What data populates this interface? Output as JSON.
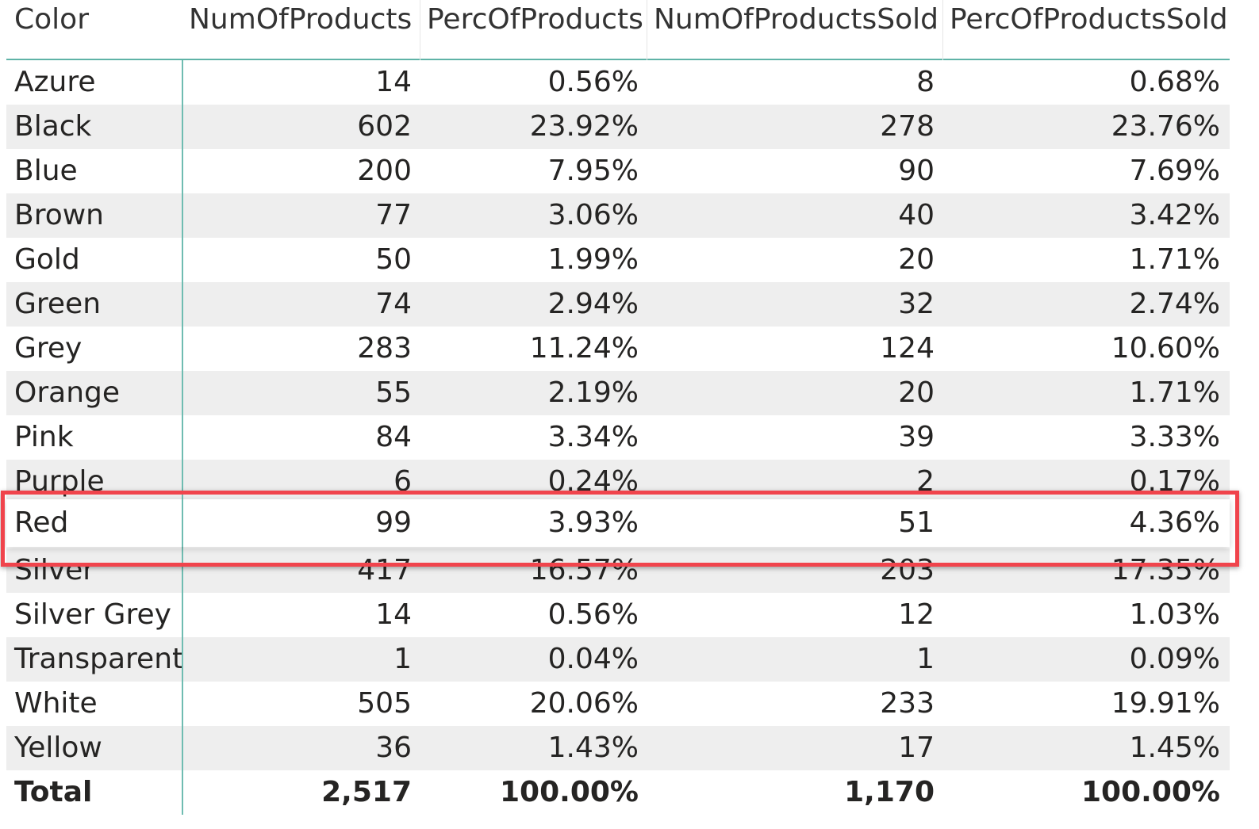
{
  "table": {
    "columns": [
      "Color",
      "NumOfProducts",
      "PercOfProducts",
      "NumOfProductsSold",
      "PercOfProductsSold"
    ],
    "rows": [
      {
        "color": "Azure",
        "num": "14",
        "perc": "0.56%",
        "sold": "8",
        "perc_sold": "0.68%"
      },
      {
        "color": "Black",
        "num": "602",
        "perc": "23.92%",
        "sold": "278",
        "perc_sold": "23.76%"
      },
      {
        "color": "Blue",
        "num": "200",
        "perc": "7.95%",
        "sold": "90",
        "perc_sold": "7.69%"
      },
      {
        "color": "Brown",
        "num": "77",
        "perc": "3.06%",
        "sold": "40",
        "perc_sold": "3.42%"
      },
      {
        "color": "Gold",
        "num": "50",
        "perc": "1.99%",
        "sold": "20",
        "perc_sold": "1.71%"
      },
      {
        "color": "Green",
        "num": "74",
        "perc": "2.94%",
        "sold": "32",
        "perc_sold": "2.74%"
      },
      {
        "color": "Grey",
        "num": "283",
        "perc": "11.24%",
        "sold": "124",
        "perc_sold": "10.60%"
      },
      {
        "color": "Orange",
        "num": "55",
        "perc": "2.19%",
        "sold": "20",
        "perc_sold": "1.71%"
      },
      {
        "color": "Pink",
        "num": "84",
        "perc": "3.34%",
        "sold": "39",
        "perc_sold": "3.33%"
      },
      {
        "color": "Purple",
        "num": "6",
        "perc": "0.24%",
        "sold": "2",
        "perc_sold": "0.17%"
      },
      {
        "color": "Red",
        "num": "99",
        "perc": "3.93%",
        "sold": "51",
        "perc_sold": "4.36%"
      },
      {
        "color": "Silver",
        "num": "417",
        "perc": "16.57%",
        "sold": "203",
        "perc_sold": "17.35%"
      },
      {
        "color": "Silver Grey",
        "num": "14",
        "perc": "0.56%",
        "sold": "12",
        "perc_sold": "1.03%"
      },
      {
        "color": "Transparent",
        "num": "1",
        "perc": "0.04%",
        "sold": "1",
        "perc_sold": "0.09%"
      },
      {
        "color": "White",
        "num": "505",
        "perc": "20.06%",
        "sold": "233",
        "perc_sold": "19.91%"
      },
      {
        "color": "Yellow",
        "num": "36",
        "perc": "1.43%",
        "sold": "17",
        "perc_sold": "1.45%"
      }
    ],
    "total": {
      "color": "Total",
      "num": "2,517",
      "perc": "100.00%",
      "sold": "1,170",
      "perc_sold": "100.00%"
    }
  },
  "highlight": {
    "row_color": "Red",
    "border_color": "#f0444c"
  },
  "colors": {
    "header_rule": "#5fb3a7",
    "alt_row": "#eeeeee"
  }
}
